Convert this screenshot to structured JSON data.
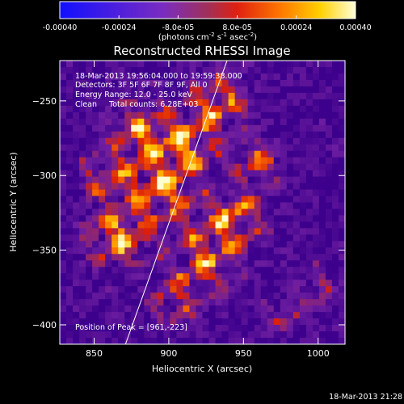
{
  "colorbar": {
    "tick_labels": [
      "-0.00040",
      "-0.00024",
      "-8.0e-05",
      "8.0e-05",
      "0.00024",
      "0.00040"
    ],
    "units_label": "(photons cm",
    "units_exp1": "-2",
    "units_mid": " s",
    "units_exp2": "-1",
    "units_end": " asec",
    "units_exp3": "-2",
    "units_close": ")",
    "range": [
      -0.0004,
      0.0004
    ]
  },
  "chart_data": {
    "type": "heatmap",
    "title": "Reconstructed RHESSI Image",
    "xlabel": "Heliocentric X (arcsec)",
    "ylabel": "Heliocentric Y (arcsec)",
    "xlim": [
      827,
      1018
    ],
    "ylim": [
      -413,
      -223
    ],
    "x_ticks": [
      850,
      900,
      950,
      1000
    ],
    "y_ticks": [
      -250,
      -300,
      -350,
      -400
    ],
    "x_tick_labels": [
      "850",
      "900",
      "950",
      "1000"
    ],
    "y_tick_labels": [
      "−250",
      "−300",
      "−350",
      "−400"
    ],
    "annotations": [
      "18-Mar-2013 19:56:04.000 to 19:59:38.000",
      "Detectors: 3F 5F 6F 7F 8F 9F, All 0",
      "Energy Range: 12.0 - 25.0 keV",
      "Clean     Total counts: 6.28E+03"
    ],
    "peak_label": "Position of Peak = [961,-223]",
    "limb_line": {
      "x": [
        871,
        939
      ],
      "y": [
        -413,
        -223
      ]
    },
    "grid": false
  },
  "timestamp": "18-Mar-2013 21:28",
  "colors": {
    "background": "#000000",
    "text": "#ffffff"
  }
}
